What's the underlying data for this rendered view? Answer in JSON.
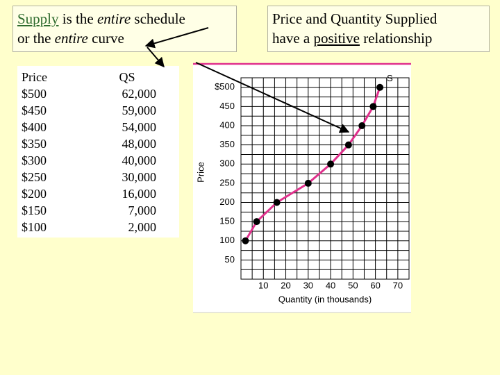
{
  "left_box": {
    "lines": [
      [
        "Supply",
        "is the",
        "entire",
        "schedule"
      ],
      [
        "or the",
        "entire",
        "curve"
      ]
    ]
  },
  "right_box": {
    "lines": [
      [
        "Price and Quantity Supplied"
      ],
      [
        "have a",
        "positive",
        "relationship"
      ]
    ]
  },
  "table": {
    "header": [
      "Price",
      "QS"
    ],
    "rows": [
      [
        "$500",
        "62,000"
      ],
      [
        "$450",
        "59,000"
      ],
      [
        "$400",
        "54,000"
      ],
      [
        "$350",
        "48,000"
      ],
      [
        "$300",
        "40,000"
      ],
      [
        "$250",
        "30,000"
      ],
      [
        "$200",
        "16,000"
      ],
      [
        "$150",
        "7,000"
      ],
      [
        "$100",
        "2,000"
      ]
    ]
  },
  "chart_data": {
    "type": "line",
    "xlabel": "Quantity (in thousands)",
    "ylabel": "Price",
    "series": [
      {
        "name": "S",
        "color": "#e0308c",
        "marker_color": "#000000",
        "x": [
          2,
          7,
          16,
          30,
          40,
          48,
          54,
          59,
          62
        ],
        "values": [
          100,
          150,
          200,
          250,
          300,
          350,
          400,
          450,
          500
        ]
      }
    ],
    "xlim": [
      0,
      75
    ],
    "ylim": [
      0,
      525
    ],
    "xticks": [
      10,
      20,
      30,
      40,
      50,
      60,
      70
    ],
    "yticks": [
      50,
      100,
      150,
      200,
      250,
      300,
      350,
      400,
      450,
      {
        "value": 500,
        "label": "$500"
      }
    ],
    "grid": true
  }
}
